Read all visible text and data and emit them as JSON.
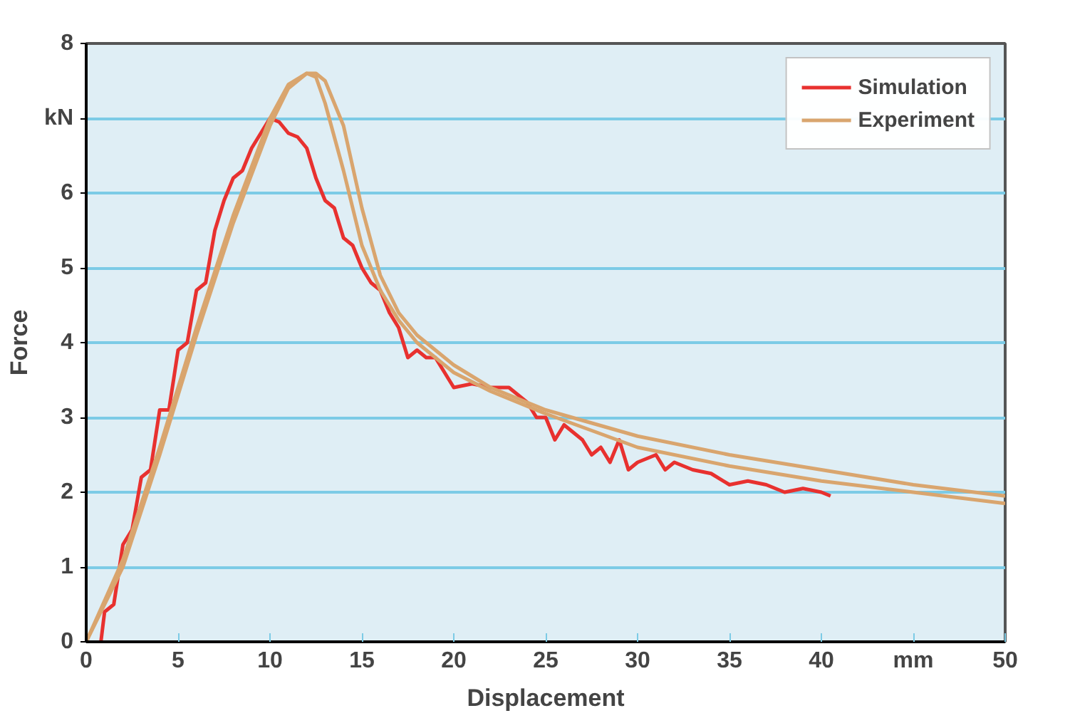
{
  "chart_data": {
    "type": "line",
    "xlabel": "Displacement",
    "ylabel": "Force",
    "xlim": [
      0,
      50
    ],
    "ylim": [
      0,
      8
    ],
    "xticks": [
      0,
      5,
      10,
      15,
      20,
      25,
      30,
      35,
      40,
      {
        "value": 45,
        "label": "mm"
      },
      50
    ],
    "yticks": [
      0,
      1,
      2,
      3,
      4,
      5,
      6,
      {
        "value": 7,
        "label": "kN"
      },
      8
    ],
    "grid": "y",
    "legend": "top right",
    "line_style": "solid",
    "series": [
      {
        "name": "Simulation",
        "color": "#e8312f",
        "x": [
          0.8,
          1,
          1.5,
          2,
          2.5,
          3,
          3.5,
          4,
          4.5,
          5,
          5.5,
          6,
          6.5,
          7,
          7.5,
          8,
          8.5,
          9,
          9.5,
          10,
          10.5,
          11,
          11.5,
          12,
          12.5,
          13,
          13.5,
          14,
          14.5,
          15,
          15.5,
          16,
          16.5,
          17,
          17.5,
          18,
          18.5,
          19,
          19.5,
          20,
          21,
          22,
          23,
          24,
          24.5,
          25,
          25.5,
          26,
          27,
          27.5,
          28,
          28.5,
          29,
          29.5,
          30,
          31,
          31.5,
          32,
          33,
          34,
          35,
          36,
          37,
          38,
          39,
          40,
          40.5
        ],
        "values": [
          0,
          0.4,
          0.5,
          1.3,
          1.5,
          2.2,
          2.3,
          3.1,
          3.1,
          3.9,
          4.0,
          4.7,
          4.8,
          5.5,
          5.9,
          6.2,
          6.3,
          6.6,
          6.8,
          7.0,
          6.95,
          6.8,
          6.75,
          6.6,
          6.2,
          5.9,
          5.8,
          5.4,
          5.3,
          5.0,
          4.8,
          4.7,
          4.4,
          4.2,
          3.8,
          3.9,
          3.8,
          3.8,
          3.6,
          3.4,
          3.45,
          3.4,
          3.4,
          3.2,
          3.0,
          3.0,
          2.7,
          2.9,
          2.7,
          2.5,
          2.6,
          2.4,
          2.7,
          2.3,
          2.4,
          2.5,
          2.3,
          2.4,
          2.3,
          2.25,
          2.1,
          2.15,
          2.1,
          2.0,
          2.05,
          2.0,
          1.95
        ]
      },
      {
        "name": "Experiment",
        "color": "#d9a56e",
        "x": [
          0,
          2,
          4,
          6,
          8,
          10,
          11,
          12,
          12.5,
          13,
          14,
          15,
          16,
          17,
          18,
          20,
          22,
          25,
          30,
          35,
          40,
          45,
          50
        ],
        "values": [
          0,
          1.0,
          2.5,
          4.1,
          5.6,
          6.9,
          7.4,
          7.6,
          7.6,
          7.5,
          6.9,
          5.8,
          4.9,
          4.4,
          4.1,
          3.7,
          3.4,
          3.1,
          2.75,
          2.5,
          2.3,
          2.1,
          1.95
        ]
      },
      {
        "color": "#d9a56e",
        "x": [
          0,
          2,
          4,
          6,
          8,
          10,
          11,
          12,
          12.5,
          13,
          14,
          15,
          16,
          17,
          18,
          20,
          22,
          25,
          30,
          35,
          40,
          45,
          50
        ],
        "values": [
          0,
          1.1,
          2.6,
          4.2,
          5.7,
          7.0,
          7.45,
          7.6,
          7.55,
          7.2,
          6.3,
          5.3,
          4.7,
          4.3,
          4.0,
          3.6,
          3.35,
          3.05,
          2.6,
          2.35,
          2.15,
          2.0,
          1.85
        ]
      }
    ]
  }
}
